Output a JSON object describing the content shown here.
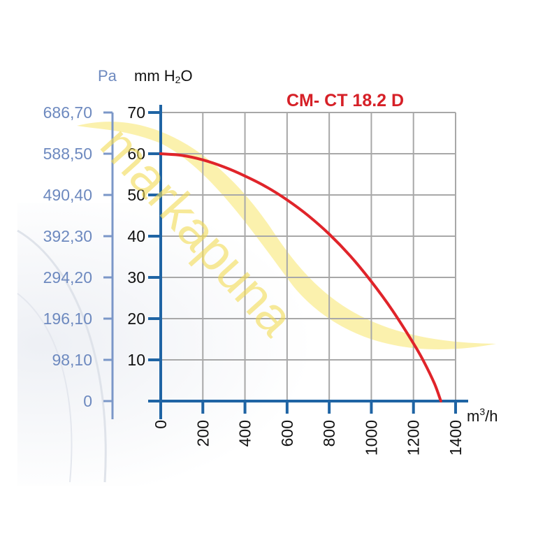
{
  "chart_data": {
    "type": "line",
    "title": "CM- CT 18.2 D",
    "xlabel_base": "m",
    "xlabel_sup": "3",
    "xlabel_tail": "/h",
    "y_left_unit": "Pa",
    "y_right_unit_pre": "mm H",
    "y_right_unit_sub": "2",
    "y_right_unit_post": "O",
    "xlim": [
      0,
      1400
    ],
    "ylim": [
      0,
      70
    ],
    "x_ticks": [
      0,
      200,
      400,
      600,
      800,
      1000,
      1200,
      1400
    ],
    "x_tick_labels": [
      "0",
      "200",
      "400",
      "600",
      "800",
      "1000",
      "1200",
      "1400"
    ],
    "y_ticks": [
      10,
      20,
      30,
      40,
      50,
      60,
      70
    ],
    "y_tick_labels": [
      "10",
      "20",
      "30",
      "40",
      "50",
      "60",
      "70"
    ],
    "pa_ticks": [
      0,
      10,
      20,
      30,
      40,
      50,
      60,
      70
    ],
    "pa_tick_labels": [
      "0",
      "98,10",
      "196,10",
      "294,20",
      "392,30",
      "490,40",
      "588,50",
      "686,70"
    ],
    "grid": true,
    "series": [
      {
        "name": "CM- CT 18.2 D",
        "color": "#e0242a",
        "x": [
          0,
          100,
          200,
          300,
          400,
          500,
          600,
          700,
          800,
          900,
          1000,
          1100,
          1200,
          1250,
          1300,
          1330
        ],
        "y": [
          60,
          59.6,
          58.5,
          56.8,
          54.6,
          52,
          48.8,
          45,
          40.5,
          35.2,
          29,
          22,
          14,
          9.5,
          4.2,
          0
        ]
      }
    ],
    "watermark": "markapuna"
  },
  "colors": {
    "axis": "#1f64a4",
    "pa_axis": "#7b97c8",
    "pa_text": "#6d89bf",
    "grid": "#a8a8a8",
    "tick_text": "#111111",
    "title": "#d62027",
    "watermark": "#f3dc55"
  }
}
